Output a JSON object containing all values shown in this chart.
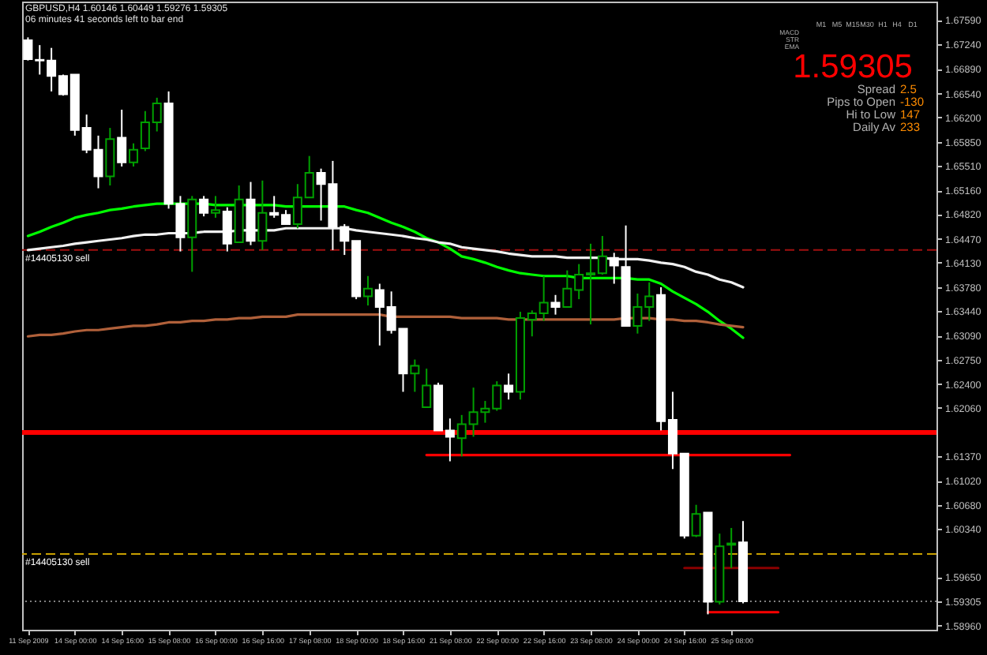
{
  "chart_data": {
    "type": "candlestick",
    "title": "GBPUSD,H4 1.60146 1.60449 1.59276 1.59305",
    "subtitle": "06 minutes 41 seconds left to bar end",
    "categories": [
      "11 Sep 2009",
      null,
      null,
      null,
      "14 Sep 00:00",
      null,
      null,
      null,
      "14 Sep 16:00",
      null,
      null,
      null,
      "15 Sep 08:00",
      null,
      null,
      null,
      "16 Sep 00:00",
      null,
      null,
      null,
      "16 Sep 16:00",
      null,
      null,
      null,
      "17 Sep 08:00",
      null,
      null,
      null,
      "18 Sep 00:00",
      null,
      null,
      null,
      "18 Sep 16:00",
      null,
      null,
      null,
      "21 Sep 08:00",
      null,
      null,
      null,
      "22 Sep 00:00",
      null,
      null,
      null,
      "22 Sep 16:00",
      null,
      null,
      null,
      "23 Sep 08:00",
      null,
      null,
      null,
      "24 Sep 00:00",
      null,
      null,
      null,
      "24 Sep 16:00",
      null,
      null,
      null,
      "25 Sep 08:00",
      null,
      null,
      null,
      null,
      null,
      null,
      null,
      null,
      null,
      null,
      null,
      null,
      null,
      null,
      null,
      null,
      null
    ],
    "ylim": [
      1.589,
      1.6785
    ],
    "yticks": [
      {
        "value": 1.6759,
        "label": "1.67590"
      },
      {
        "value": 1.6724,
        "label": "1.67240"
      },
      {
        "value": 1.6689,
        "label": "1.66890"
      },
      {
        "value": 1.6654,
        "label": "1.66540"
      },
      {
        "value": 1.662,
        "label": "1.66200"
      },
      {
        "value": 1.6585,
        "label": "1.65850"
      },
      {
        "value": 1.6551,
        "label": "1.65510"
      },
      {
        "value": 1.6516,
        "label": "1.65160"
      },
      {
        "value": 1.6482,
        "label": "1.64820"
      },
      {
        "value": 1.6447,
        "label": "1.64470"
      },
      {
        "value": 1.6413,
        "label": "1.64130"
      },
      {
        "value": 1.6378,
        "label": "1.63780"
      },
      {
        "value": 1.6344,
        "label": "1.63440"
      },
      {
        "value": 1.6309,
        "label": "1.63090"
      },
      {
        "value": 1.6275,
        "label": "1.62750"
      },
      {
        "value": 1.624,
        "label": "1.62400"
      },
      {
        "value": 1.6206,
        "label": "1.62060"
      },
      {
        "value": 1.6137,
        "label": "1.61370"
      },
      {
        "value": 1.6102,
        "label": "1.61020"
      },
      {
        "value": 1.6068,
        "label": "1.60680"
      },
      {
        "value": 1.6034,
        "label": "1.60340"
      },
      {
        "value": 1.5965,
        "label": "1.59650"
      },
      {
        "value": 1.59305,
        "label": "1.59305"
      },
      {
        "value": 1.5896,
        "label": "1.58960"
      }
    ],
    "series": [
      {
        "type": "line",
        "color": "#00ff00",
        "values": [
          1.6451,
          1.6457,
          1.6464,
          1.647,
          1.6477,
          1.6481,
          1.6484,
          1.6488,
          1.649,
          1.6493,
          1.6495,
          1.6497,
          1.6497,
          1.6497,
          1.6497,
          1.6497,
          1.6495,
          1.6495,
          1.6495,
          1.6495,
          1.6495,
          1.6495,
          1.6493,
          1.6493,
          1.6493,
          1.6493,
          1.6493,
          1.6493,
          1.6488,
          1.6484,
          1.6477,
          1.647,
          1.6464,
          1.6457,
          1.6448,
          1.6442,
          1.6433,
          1.6422,
          1.6418,
          1.6413,
          1.6407,
          1.6402,
          1.6398,
          1.6396,
          1.6394,
          1.6394,
          1.6394,
          1.6391,
          1.6391,
          1.6391,
          1.6391,
          1.6391,
          1.6389,
          1.6389,
          1.6383,
          1.6372,
          1.6363,
          1.6354,
          1.6343,
          1.633,
          1.6319,
          1.6306,
          null,
          null,
          null,
          null,
          null,
          null,
          null,
          null,
          null,
          null,
          null,
          null,
          null,
          null,
          null,
          null
        ]
      },
      {
        "type": "line",
        "color": "#f0f0f0",
        "values": [
          1.6431,
          1.6433,
          1.6435,
          1.6437,
          1.644,
          1.6442,
          1.6444,
          1.6446,
          1.6448,
          1.6451,
          1.6453,
          1.6453,
          1.6455,
          1.6455,
          1.6455,
          1.6457,
          1.6457,
          1.6457,
          1.6459,
          1.6459,
          1.6459,
          1.6459,
          1.6462,
          1.6462,
          1.6462,
          1.6462,
          1.6462,
          1.6462,
          1.6459,
          1.6457,
          1.6455,
          1.6453,
          1.6451,
          1.6448,
          1.6446,
          1.6442,
          1.644,
          1.6435,
          1.6433,
          1.6431,
          1.6429,
          1.6426,
          1.6424,
          1.6422,
          1.6422,
          1.6422,
          1.642,
          1.642,
          1.642,
          1.642,
          1.6418,
          1.6418,
          1.6418,
          1.6416,
          1.6413,
          1.6411,
          1.6407,
          1.64,
          1.6396,
          1.6389,
          1.6385,
          1.6378,
          null,
          null,
          null,
          null,
          null,
          null,
          null,
          null,
          null,
          null,
          null,
          null,
          null,
          null,
          null,
          null
        ]
      },
      {
        "type": "line",
        "color": "#b0603a",
        "values": [
          1.6308,
          1.631,
          1.631,
          1.6312,
          1.6315,
          1.6317,
          1.6317,
          1.6319,
          1.6321,
          1.6323,
          1.6323,
          1.6325,
          1.6328,
          1.6328,
          1.633,
          1.633,
          1.6332,
          1.6332,
          1.6334,
          1.6334,
          1.6336,
          1.6336,
          1.6336,
          1.6339,
          1.6339,
          1.6339,
          1.6339,
          1.6339,
          1.6339,
          1.6339,
          1.6339,
          1.6336,
          1.6336,
          1.6336,
          1.6336,
          1.6336,
          1.6336,
          1.6334,
          1.6334,
          1.6334,
          1.6334,
          1.6332,
          1.6332,
          1.6332,
          1.6332,
          1.6332,
          1.6332,
          1.6332,
          1.6332,
          1.6332,
          1.6332,
          1.6334,
          1.6334,
          1.6334,
          1.6332,
          1.6332,
          1.633,
          1.633,
          1.6328,
          1.6325,
          1.6323,
          1.6321,
          null,
          null,
          null,
          null,
          null,
          null,
          null,
          null,
          null,
          null,
          null,
          null,
          null,
          null,
          null,
          null
        ]
      },
      {
        "type": "line",
        "color": "#ff0000",
        "values": [
          null,
          null,
          null,
          null,
          null,
          null,
          null,
          null,
          null,
          null,
          null,
          null,
          null,
          null,
          null,
          null,
          null,
          null,
          null,
          null,
          null,
          null,
          null,
          null,
          null,
          null,
          null,
          null,
          null,
          null,
          null,
          null,
          null,
          null,
          1.6139,
          1.6139,
          1.6139,
          1.6139,
          1.6139,
          1.6139,
          1.6139,
          1.6139,
          1.6139,
          1.6139,
          1.6139,
          1.6139,
          1.6139,
          1.6139,
          1.6139,
          1.6139,
          1.6139,
          1.6139,
          1.6139,
          1.6139,
          1.6139,
          1.6139,
          1.6139,
          1.6139,
          1.6139,
          1.6139,
          1.6139,
          1.6139,
          1.6139,
          1.6139,
          1.6139,
          1.6139,
          null,
          null,
          null,
          null,
          null,
          null,
          null,
          null,
          null,
          null,
          null,
          null
        ]
      },
      {
        "type": "line",
        "color": "#ff0000",
        "values": [
          null,
          null,
          null,
          null,
          null,
          null,
          null,
          null,
          null,
          null,
          null,
          null,
          null,
          null,
          null,
          null,
          null,
          null,
          null,
          null,
          null,
          null,
          null,
          null,
          null,
          null,
          null,
          null,
          null,
          null,
          null,
          null,
          null,
          null,
          null,
          null,
          null,
          null,
          null,
          null,
          null,
          null,
          null,
          null,
          null,
          null,
          null,
          null,
          null,
          null,
          null,
          null,
          null,
          null,
          null,
          null,
          null,
          null,
          1.5915,
          1.5915,
          1.5915,
          1.5915,
          1.5915,
          1.5915,
          1.5915,
          null,
          null,
          null,
          null,
          null,
          null,
          null,
          null,
          null,
          null,
          null,
          null,
          null
        ]
      },
      {
        "type": "line",
        "color": "#8b0000",
        "values": [
          null,
          null,
          null,
          null,
          null,
          null,
          null,
          null,
          null,
          null,
          null,
          null,
          null,
          null,
          null,
          null,
          null,
          null,
          null,
          null,
          null,
          null,
          null,
          null,
          null,
          null,
          null,
          null,
          null,
          null,
          null,
          null,
          null,
          null,
          null,
          null,
          null,
          null,
          null,
          null,
          null,
          null,
          null,
          null,
          null,
          null,
          null,
          null,
          null,
          null,
          null,
          null,
          null,
          null,
          null,
          null,
          1.5978,
          1.5978,
          1.5978,
          1.5978,
          1.5978,
          1.5978,
          1.5978,
          1.5978,
          1.5978,
          null,
          null,
          null,
          null,
          null,
          null,
          null,
          null,
          null,
          null,
          null,
          null,
          null
        ]
      },
      {
        "type": "candlestick",
        "colors": [
          "#ffffff",
          "#ffffff",
          "#ffffff",
          "#ffffff",
          "#ffffff",
          "#ffffff",
          "#ffffff",
          "#00a000",
          "#ffffff",
          "#00a000",
          "#00a000",
          "#00a000",
          "#ffffff",
          "#ffffff",
          "#00a000",
          "#ffffff",
          "#00a000",
          "#ffffff",
          "#00a000",
          "#ffffff",
          "#00a000",
          "#ffffff",
          "#ffffff",
          "#00a000",
          "#00a000",
          "#ffffff",
          "#ffffff",
          "#ffffff",
          "#ffffff",
          "#00a000",
          "#ffffff",
          "#ffffff",
          "#ffffff",
          "#00a000",
          "#00a000",
          "#ffffff",
          "#ffffff",
          "#00a000",
          "#00a000",
          "#00a000",
          "#00a000",
          "#ffffff",
          "#00a000",
          "#00a000",
          "#00a000",
          "#ffffff",
          "#00a000",
          "#00a000",
          "#00a000",
          "#00a000",
          "#ffffff",
          "#ffffff",
          "#00a000",
          "#00a000",
          "#ffffff",
          "#ffffff",
          "#ffffff",
          "#00a000",
          "#ffffff",
          "#00a000",
          "#00a000",
          "#ffffff",
          null,
          null,
          null,
          null,
          null,
          null,
          null,
          null,
          null,
          null,
          null,
          null,
          null,
          null,
          null,
          null
        ],
        "ohlc": [
          [
            1.673,
            1.6734,
            1.6701,
            1.6703
          ],
          [
            1.6702,
            1.6723,
            1.6681,
            1.6701
          ],
          [
            1.6701,
            1.6719,
            1.6657,
            1.6679
          ],
          [
            1.6679,
            1.6681,
            1.6651,
            1.6653
          ],
          [
            1.6681,
            1.6681,
            1.6594,
            1.6602
          ],
          [
            1.6605,
            1.6624,
            1.6569,
            1.6574
          ],
          [
            1.6574,
            1.6594,
            1.6519,
            1.6536
          ],
          [
            1.6536,
            1.6605,
            1.6523,
            1.6589
          ],
          [
            1.6591,
            1.6631,
            1.655,
            1.6556
          ],
          [
            1.6556,
            1.6583,
            1.655,
            1.6574
          ],
          [
            1.6576,
            1.6629,
            1.6572,
            1.6613
          ],
          [
            1.6613,
            1.6648,
            1.66,
            1.664
          ],
          [
            1.664,
            1.6657,
            1.649,
            1.6497
          ],
          [
            1.6497,
            1.6508,
            1.6429,
            1.6449
          ],
          [
            1.6449,
            1.6508,
            1.64,
            1.6503
          ],
          [
            1.6503,
            1.6508,
            1.6479,
            1.6484
          ],
          [
            1.6484,
            1.6508,
            1.6477,
            1.6488
          ],
          [
            1.6486,
            1.6492,
            1.6429,
            1.644
          ],
          [
            1.6442,
            1.6523,
            1.6442,
            1.6503
          ],
          [
            1.6503,
            1.6528,
            1.6438,
            1.6444
          ],
          [
            1.6444,
            1.653,
            1.6431,
            1.6484
          ],
          [
            1.6484,
            1.6508,
            1.6477,
            1.6481
          ],
          [
            1.6481,
            1.6488,
            1.6468,
            1.6468
          ],
          [
            1.6468,
            1.6525,
            1.6462,
            1.6506
          ],
          [
            1.6506,
            1.6565,
            1.6506,
            1.6541
          ],
          [
            1.6541,
            1.6547,
            1.6473,
            1.6525
          ],
          [
            1.6525,
            1.6558,
            1.6431,
            1.6464
          ],
          [
            1.6464,
            1.6468,
            1.6424,
            1.6444
          ],
          [
            1.6444,
            1.6444,
            1.6361,
            1.6365
          ],
          [
            1.6365,
            1.6394,
            1.6352,
            1.6376
          ],
          [
            1.6374,
            1.6383,
            1.6295,
            1.635
          ],
          [
            1.635,
            1.6372,
            1.6312,
            1.6317
          ],
          [
            1.6319,
            1.6319,
            1.6229,
            1.6255
          ],
          [
            1.6255,
            1.6275,
            1.6229,
            1.6266
          ],
          [
            1.6207,
            1.6262,
            1.6207,
            1.6238
          ],
          [
            1.6238,
            1.6242,
            1.6174,
            1.6174
          ],
          [
            1.6174,
            1.6191,
            1.613,
            1.6165
          ],
          [
            1.6163,
            1.6196,
            1.6137,
            1.6183
          ],
          [
            1.6183,
            1.6235,
            1.6165,
            1.62
          ],
          [
            1.62,
            1.6216,
            1.6185,
            1.6205
          ],
          [
            1.6205,
            1.6244,
            1.6202,
            1.6238
          ],
          [
            1.6238,
            1.6255,
            1.6218,
            1.6229
          ],
          [
            1.6229,
            1.6343,
            1.6218,
            1.6334
          ],
          [
            1.6332,
            1.6345,
            1.6308,
            1.6341
          ],
          [
            1.6341,
            1.6394,
            1.633,
            1.6356
          ],
          [
            1.6356,
            1.6367,
            1.6339,
            1.635
          ],
          [
            1.635,
            1.6402,
            1.635,
            1.6376
          ],
          [
            1.6374,
            1.6411,
            1.6361,
            1.6396
          ],
          [
            1.6396,
            1.644,
            1.6325,
            1.6398
          ],
          [
            1.6398,
            1.6451,
            1.6396,
            1.6422
          ],
          [
            1.642,
            1.6427,
            1.6383,
            1.6409
          ],
          [
            1.6407,
            1.6466,
            1.6323,
            1.6323
          ],
          [
            1.6323,
            1.6369,
            1.6312,
            1.635
          ],
          [
            1.635,
            1.6385,
            1.633,
            1.6365
          ],
          [
            1.6367,
            1.6378,
            1.6174,
            1.6187
          ],
          [
            1.6189,
            1.6229,
            1.6119,
            1.6141
          ],
          [
            1.6141,
            1.6141,
            1.602,
            1.6024
          ],
          [
            1.6024,
            1.6068,
            1.6022,
            1.6055
          ],
          [
            1.6057,
            1.6057,
            1.5912,
            1.593
          ],
          [
            1.593,
            1.6027,
            1.5926,
            1.6009
          ],
          [
            1.6011,
            1.6035,
            1.5978,
            1.6013
          ],
          [
            1.60146,
            1.60449,
            1.59276,
            1.59305
          ],
          null,
          null,
          null,
          null,
          null,
          null,
          null,
          null,
          null,
          null,
          null,
          null,
          null,
          null,
          null,
          null
        ]
      }
    ],
    "ref_lines": [
      {
        "axis": "y",
        "value": 1.6431,
        "label": "#14405130 sell",
        "color": "#a01010",
        "line_style": "dashed"
      },
      {
        "axis": "y",
        "value": 1.6171,
        "color": "#ff0000",
        "line_style": "solid"
      },
      {
        "axis": "y",
        "value": 1.5998,
        "label": "#14405130 sell",
        "color": "#c8a000",
        "line_style": "dashed"
      },
      {
        "axis": "y",
        "value": 1.59305,
        "color": "#808080",
        "line_style": "dotted"
      }
    ],
    "annotations": [
      "1.59305",
      "Spread",
      "2.5",
      "Pips to Open",
      "-130",
      "Hi to Low",
      "147",
      "Daily Av",
      "233",
      "M1",
      "M5",
      "M15",
      "M30",
      "H1",
      "H4",
      "D1",
      "MACD",
      "STR",
      "EMA"
    ]
  }
}
